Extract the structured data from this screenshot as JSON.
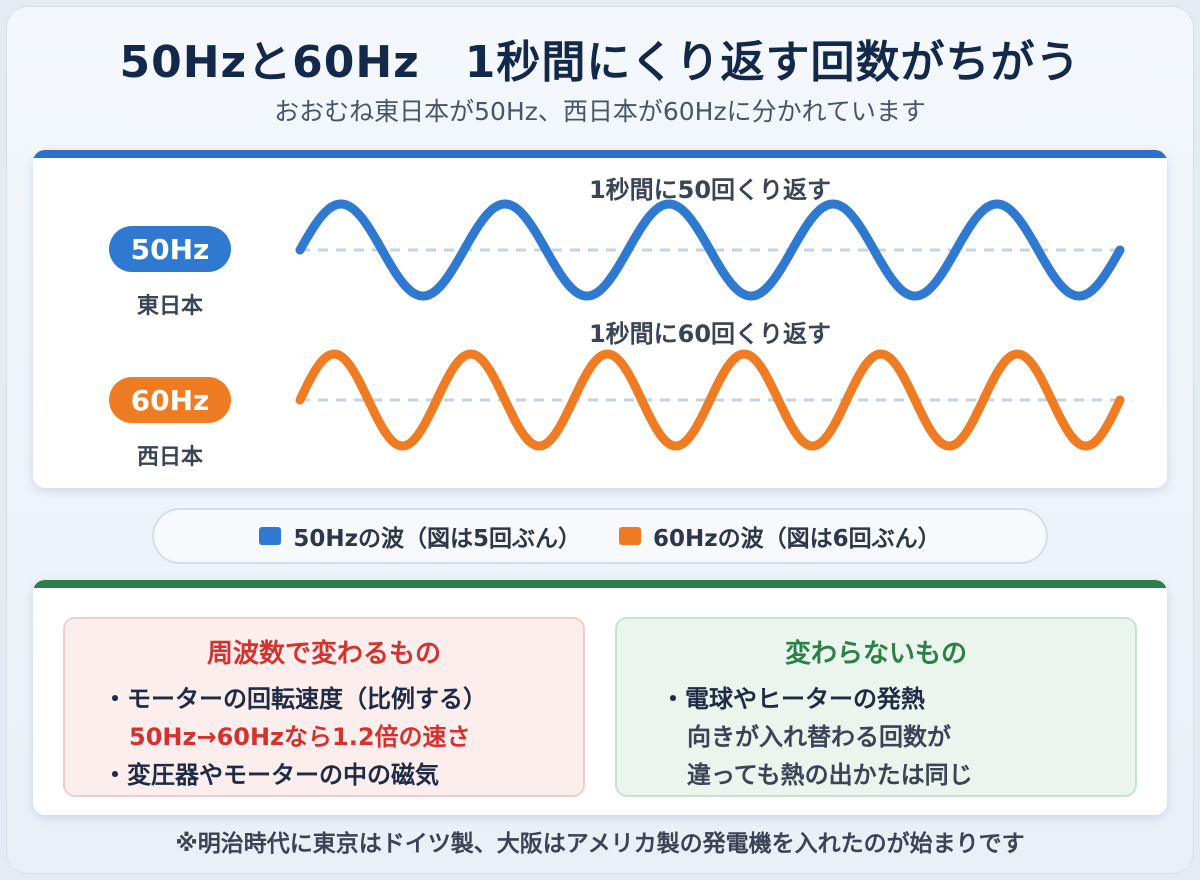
{
  "title": "50Hzと60Hz　1秒間にくり返す回数がちがう",
  "subtitle": "おおむね東日本が50Hz、西日本が60Hzに分かれています",
  "colors": {
    "hz50": "#2f7ad0",
    "hz60": "#ef7c22",
    "panel_top_bar": "#2e6fc7",
    "panel_bottom_bar": "#2a8048",
    "change_title": "#d3322f",
    "same_title": "#2a8048"
  },
  "waves": [
    {
      "pill": "50Hz",
      "region": "東日本",
      "label": "1秒間に50回くり返す",
      "cycles": 5,
      "color": "#2f7ad0"
    },
    {
      "pill": "60Hz",
      "region": "西日本",
      "label": "1秒間に60回くり返す",
      "cycles": 6,
      "color": "#ef7c22"
    }
  ],
  "legend": [
    {
      "label": "50Hzの波（図は5回ぶん）",
      "color": "#2f7ad0"
    },
    {
      "label": "60Hzの波（図は6回ぶん）",
      "color": "#ef7c22"
    }
  ],
  "change_box": {
    "title": "周波数で変わるもの",
    "item1": "・モーターの回転速度（比例する）",
    "item1_note": "50Hz→60Hzなら1.2倍の速さ",
    "item2": "・変圧器やモーターの中の磁気"
  },
  "same_box": {
    "title": "変わらないもの",
    "item1": "・電球やヒーターの発熱",
    "item1_line2": "向きが入れ替わる回数が",
    "item1_line3": "違っても熱の出かたは同じ"
  },
  "footnote": "※明治時代に東京はドイツ製、大阪はアメリカ製の発電機を入れたのが始まりです"
}
